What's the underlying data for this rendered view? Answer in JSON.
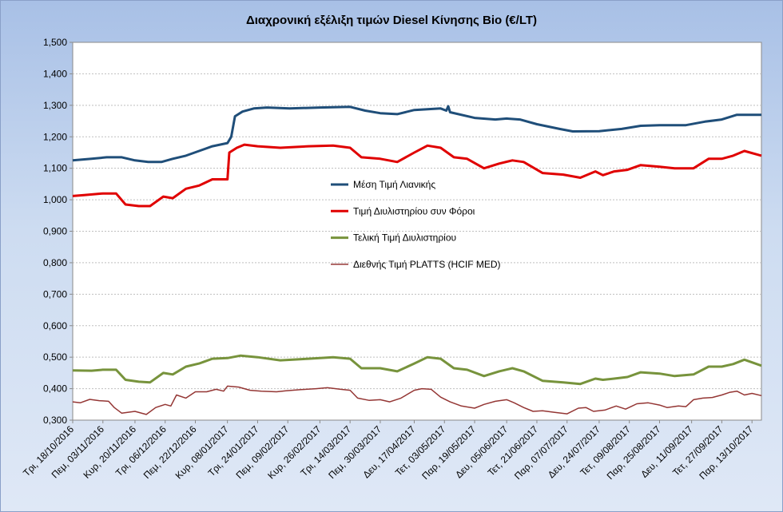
{
  "chart_data": {
    "type": "line",
    "title": "Διαχρονική εξέλιξη τιμών Diesel Κίνησης Bio (€/LT)",
    "xlabel": "",
    "ylabel": "",
    "ylim": [
      0.3,
      1.5
    ],
    "yticks": [
      "1,500",
      "1,400",
      "1,300",
      "1,200",
      "1,100",
      "1,000",
      "0,900",
      "0,800",
      "0,700",
      "0,600",
      "0,500",
      "0,400",
      "0,300"
    ],
    "ytick_values": [
      1.5,
      1.4,
      1.3,
      1.2,
      1.1,
      1.0,
      0.9,
      0.8,
      0.7,
      0.6,
      0.5,
      0.4,
      0.3
    ],
    "x_start": "2016-10-18",
    "x_end": "2017-10-18",
    "xticks": [
      {
        "label": "Τρι, 18/10/2016",
        "date": "2016-10-18"
      },
      {
        "label": "Πεμ, 03/11/2016",
        "date": "2016-11-03"
      },
      {
        "label": "Κυρ, 20/11/2016",
        "date": "2016-11-20"
      },
      {
        "label": "Τρι, 06/12/2016",
        "date": "2016-12-06"
      },
      {
        "label": "Πεμ, 22/12/2016",
        "date": "2016-12-22"
      },
      {
        "label": "Κυρ, 08/01/2017",
        "date": "2017-01-08"
      },
      {
        "label": "Τρι, 24/01/2017",
        "date": "2017-01-24"
      },
      {
        "label": "Πεμ, 09/02/2017",
        "date": "2017-02-09"
      },
      {
        "label": "Κυρ, 26/02/2017",
        "date": "2017-02-26"
      },
      {
        "label": "Τρι, 14/03/2017",
        "date": "2017-03-14"
      },
      {
        "label": "Πεμ, 30/03/2017",
        "date": "2017-03-30"
      },
      {
        "label": "Δευ, 17/04/2017",
        "date": "2017-04-17"
      },
      {
        "label": "Τετ, 03/05/2017",
        "date": "2017-05-03"
      },
      {
        "label": "Παρ, 19/05/2017",
        "date": "2017-05-19"
      },
      {
        "label": "Δευ, 05/06/2017",
        "date": "2017-06-05"
      },
      {
        "label": "Τετ, 21/06/2017",
        "date": "2017-06-21"
      },
      {
        "label": "Παρ, 07/07/2017",
        "date": "2017-07-07"
      },
      {
        "label": "Δευ, 24/07/2017",
        "date": "2017-07-24"
      },
      {
        "label": "Τετ, 09/08/2017",
        "date": "2017-08-09"
      },
      {
        "label": "Παρ, 25/08/2017",
        "date": "2017-08-25"
      },
      {
        "label": "Δευ, 11/09/2017",
        "date": "2017-09-11"
      },
      {
        "label": "Τετ, 27/09/2017",
        "date": "2017-09-27"
      },
      {
        "label": "Παρ, 13/10/2017",
        "date": "2017-10-13"
      }
    ],
    "grid": true,
    "legend_position": "center",
    "series": [
      {
        "name": "Μέση Τιμή Λιανικής",
        "color": "#1f4e79",
        "points": [
          [
            "2016-10-18",
            1.125
          ],
          [
            "2016-10-28",
            1.13
          ],
          [
            "2016-11-05",
            1.135
          ],
          [
            "2016-11-13",
            1.135
          ],
          [
            "2016-11-20",
            1.125
          ],
          [
            "2016-11-27",
            1.12
          ],
          [
            "2016-12-04",
            1.12
          ],
          [
            "2016-12-10",
            1.13
          ],
          [
            "2016-12-17",
            1.14
          ],
          [
            "2016-12-24",
            1.155
          ],
          [
            "2016-12-31",
            1.17
          ],
          [
            "2017-01-08",
            1.18
          ],
          [
            "2017-01-10",
            1.2
          ],
          [
            "2017-01-12",
            1.265
          ],
          [
            "2017-01-16",
            1.28
          ],
          [
            "2017-01-22",
            1.29
          ],
          [
            "2017-01-29",
            1.293
          ],
          [
            "2017-02-10",
            1.29
          ],
          [
            "2017-02-26",
            1.293
          ],
          [
            "2017-03-14",
            1.295
          ],
          [
            "2017-03-22",
            1.283
          ],
          [
            "2017-03-30",
            1.275
          ],
          [
            "2017-04-08",
            1.272
          ],
          [
            "2017-04-17",
            1.285
          ],
          [
            "2017-05-01",
            1.29
          ],
          [
            "2017-05-04",
            1.283
          ],
          [
            "2017-05-05",
            1.297
          ],
          [
            "2017-05-06",
            1.278
          ],
          [
            "2017-05-19",
            1.26
          ],
          [
            "2017-05-30",
            1.255
          ],
          [
            "2017-06-05",
            1.258
          ],
          [
            "2017-06-12",
            1.255
          ],
          [
            "2017-06-21",
            1.24
          ],
          [
            "2017-07-03",
            1.225
          ],
          [
            "2017-07-10",
            1.217
          ],
          [
            "2017-07-24",
            1.218
          ],
          [
            "2017-08-05",
            1.225
          ],
          [
            "2017-08-15",
            1.235
          ],
          [
            "2017-08-25",
            1.237
          ],
          [
            "2017-09-08",
            1.237
          ],
          [
            "2017-09-18",
            1.248
          ],
          [
            "2017-09-27",
            1.255
          ],
          [
            "2017-10-05",
            1.27
          ],
          [
            "2017-10-18",
            1.27
          ]
        ]
      },
      {
        "name": "Τιμή Διυλιστηρίου συν Φόροι",
        "color": "#e00000",
        "points": [
          [
            "2016-10-18",
            1.012
          ],
          [
            "2016-10-24",
            1.015
          ],
          [
            "2016-11-03",
            1.02
          ],
          [
            "2016-11-10",
            1.02
          ],
          [
            "2016-11-15",
            0.985
          ],
          [
            "2016-11-22",
            0.98
          ],
          [
            "2016-11-28",
            0.98
          ],
          [
            "2016-12-05",
            1.01
          ],
          [
            "2016-12-10",
            1.005
          ],
          [
            "2016-12-17",
            1.035
          ],
          [
            "2016-12-24",
            1.045
          ],
          [
            "2016-12-31",
            1.065
          ],
          [
            "2017-01-08",
            1.065
          ],
          [
            "2017-01-09",
            1.15
          ],
          [
            "2017-01-13",
            1.165
          ],
          [
            "2017-01-17",
            1.175
          ],
          [
            "2017-01-24",
            1.17
          ],
          [
            "2017-02-05",
            1.165
          ],
          [
            "2017-02-20",
            1.17
          ],
          [
            "2017-03-05",
            1.172
          ],
          [
            "2017-03-14",
            1.165
          ],
          [
            "2017-03-20",
            1.135
          ],
          [
            "2017-03-30",
            1.13
          ],
          [
            "2017-04-08",
            1.12
          ],
          [
            "2017-04-17",
            1.15
          ],
          [
            "2017-04-24",
            1.172
          ],
          [
            "2017-05-01",
            1.165
          ],
          [
            "2017-05-08",
            1.135
          ],
          [
            "2017-05-15",
            1.13
          ],
          [
            "2017-05-24",
            1.1
          ],
          [
            "2017-06-01",
            1.115
          ],
          [
            "2017-06-08",
            1.125
          ],
          [
            "2017-06-14",
            1.12
          ],
          [
            "2017-06-24",
            1.085
          ],
          [
            "2017-07-05",
            1.08
          ],
          [
            "2017-07-14",
            1.07
          ],
          [
            "2017-07-22",
            1.09
          ],
          [
            "2017-07-26",
            1.078
          ],
          [
            "2017-08-01",
            1.09
          ],
          [
            "2017-08-08",
            1.095
          ],
          [
            "2017-08-15",
            1.11
          ],
          [
            "2017-08-25",
            1.105
          ],
          [
            "2017-09-02",
            1.1
          ],
          [
            "2017-09-12",
            1.1
          ],
          [
            "2017-09-20",
            1.13
          ],
          [
            "2017-09-27",
            1.13
          ],
          [
            "2017-10-03",
            1.14
          ],
          [
            "2017-10-09",
            1.155
          ],
          [
            "2017-10-18",
            1.14
          ]
        ]
      },
      {
        "name": "Τελική Τιμή Διυλιστηρίου",
        "color": "#77933c",
        "points": [
          [
            "2016-10-18",
            0.458
          ],
          [
            "2016-10-28",
            0.457
          ],
          [
            "2016-11-03",
            0.46
          ],
          [
            "2016-11-10",
            0.46
          ],
          [
            "2016-11-15",
            0.428
          ],
          [
            "2016-11-22",
            0.422
          ],
          [
            "2016-11-28",
            0.42
          ],
          [
            "2016-12-05",
            0.45
          ],
          [
            "2016-12-10",
            0.445
          ],
          [
            "2016-12-17",
            0.47
          ],
          [
            "2016-12-24",
            0.48
          ],
          [
            "2016-12-31",
            0.495
          ],
          [
            "2017-01-08",
            0.497
          ],
          [
            "2017-01-15",
            0.505
          ],
          [
            "2017-01-24",
            0.5
          ],
          [
            "2017-02-05",
            0.49
          ],
          [
            "2017-02-20",
            0.495
          ],
          [
            "2017-03-05",
            0.5
          ],
          [
            "2017-03-14",
            0.495
          ],
          [
            "2017-03-20",
            0.465
          ],
          [
            "2017-03-30",
            0.465
          ],
          [
            "2017-04-08",
            0.455
          ],
          [
            "2017-04-17",
            0.48
          ],
          [
            "2017-04-24",
            0.5
          ],
          [
            "2017-05-01",
            0.495
          ],
          [
            "2017-05-08",
            0.465
          ],
          [
            "2017-05-15",
            0.46
          ],
          [
            "2017-05-24",
            0.44
          ],
          [
            "2017-06-01",
            0.455
          ],
          [
            "2017-06-08",
            0.465
          ],
          [
            "2017-06-14",
            0.455
          ],
          [
            "2017-06-24",
            0.425
          ],
          [
            "2017-07-05",
            0.42
          ],
          [
            "2017-07-14",
            0.415
          ],
          [
            "2017-07-22",
            0.432
          ],
          [
            "2017-07-26",
            0.428
          ],
          [
            "2017-08-01",
            0.432
          ],
          [
            "2017-08-08",
            0.437
          ],
          [
            "2017-08-15",
            0.452
          ],
          [
            "2017-08-25",
            0.448
          ],
          [
            "2017-09-02",
            0.44
          ],
          [
            "2017-09-12",
            0.445
          ],
          [
            "2017-09-20",
            0.47
          ],
          [
            "2017-09-27",
            0.47
          ],
          [
            "2017-10-03",
            0.478
          ],
          [
            "2017-10-09",
            0.492
          ],
          [
            "2017-10-18",
            0.473
          ]
        ]
      },
      {
        "name": "Διεθνής Τιμή PLATTS (HCIF MED)",
        "color": "#943634",
        "points": [
          [
            "2016-10-18",
            0.358
          ],
          [
            "2016-10-22",
            0.355
          ],
          [
            "2016-10-27",
            0.366
          ],
          [
            "2016-11-01",
            0.362
          ],
          [
            "2016-11-06",
            0.36
          ],
          [
            "2016-11-09",
            0.34
          ],
          [
            "2016-11-13",
            0.322
          ],
          [
            "2016-11-20",
            0.328
          ],
          [
            "2016-11-26",
            0.318
          ],
          [
            "2016-12-01",
            0.34
          ],
          [
            "2016-12-06",
            0.35
          ],
          [
            "2016-12-09",
            0.345
          ],
          [
            "2016-12-12",
            0.38
          ],
          [
            "2016-12-17",
            0.37
          ],
          [
            "2016-12-22",
            0.39
          ],
          [
            "2016-12-28",
            0.39
          ],
          [
            "2017-01-02",
            0.398
          ],
          [
            "2017-01-06",
            0.392
          ],
          [
            "2017-01-08",
            0.408
          ],
          [
            "2017-01-14",
            0.405
          ],
          [
            "2017-01-20",
            0.395
          ],
          [
            "2017-01-26",
            0.392
          ],
          [
            "2017-02-03",
            0.39
          ],
          [
            "2017-02-08",
            0.393
          ],
          [
            "2017-02-16",
            0.397
          ],
          [
            "2017-02-24",
            0.4
          ],
          [
            "2017-03-02",
            0.403
          ],
          [
            "2017-03-09",
            0.398
          ],
          [
            "2017-03-14",
            0.395
          ],
          [
            "2017-03-18",
            0.37
          ],
          [
            "2017-03-24",
            0.363
          ],
          [
            "2017-03-30",
            0.365
          ],
          [
            "2017-04-04",
            0.358
          ],
          [
            "2017-04-10",
            0.37
          ],
          [
            "2017-04-17",
            0.395
          ],
          [
            "2017-04-21",
            0.4
          ],
          [
            "2017-04-26",
            0.398
          ],
          [
            "2017-05-01",
            0.373
          ],
          [
            "2017-05-06",
            0.358
          ],
          [
            "2017-05-12",
            0.345
          ],
          [
            "2017-05-19",
            0.338
          ],
          [
            "2017-05-24",
            0.35
          ],
          [
            "2017-05-30",
            0.36
          ],
          [
            "2017-06-05",
            0.365
          ],
          [
            "2017-06-09",
            0.355
          ],
          [
            "2017-06-14",
            0.34
          ],
          [
            "2017-06-19",
            0.328
          ],
          [
            "2017-06-24",
            0.33
          ],
          [
            "2017-06-30",
            0.325
          ],
          [
            "2017-07-07",
            0.32
          ],
          [
            "2017-07-13",
            0.338
          ],
          [
            "2017-07-17",
            0.34
          ],
          [
            "2017-07-21",
            0.328
          ],
          [
            "2017-07-27",
            0.332
          ],
          [
            "2017-08-02",
            0.345
          ],
          [
            "2017-08-07",
            0.335
          ],
          [
            "2017-08-13",
            0.352
          ],
          [
            "2017-08-19",
            0.355
          ],
          [
            "2017-08-25",
            0.348
          ],
          [
            "2017-08-29",
            0.34
          ],
          [
            "2017-09-04",
            0.345
          ],
          [
            "2017-09-08",
            0.343
          ],
          [
            "2017-09-12",
            0.365
          ],
          [
            "2017-09-17",
            0.37
          ],
          [
            "2017-09-22",
            0.372
          ],
          [
            "2017-09-27",
            0.38
          ],
          [
            "2017-10-01",
            0.388
          ],
          [
            "2017-10-05",
            0.392
          ],
          [
            "2017-10-09",
            0.38
          ],
          [
            "2017-10-13",
            0.385
          ],
          [
            "2017-10-18",
            0.378
          ]
        ]
      }
    ]
  }
}
